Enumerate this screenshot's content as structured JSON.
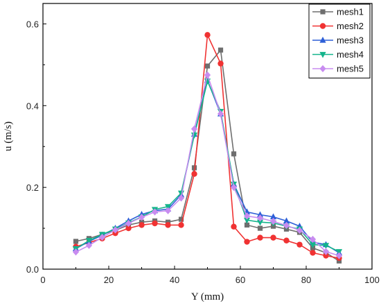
{
  "chart_data": {
    "type": "line",
    "xlabel": "Y (mm)",
    "ylabel": "u (m/s)",
    "xlim": [
      0,
      100
    ],
    "ylim": [
      0,
      0.65
    ],
    "xticks": [
      0,
      20,
      40,
      60,
      80,
      100
    ],
    "yticks": [
      0.0,
      0.2,
      0.4,
      0.6
    ],
    "ytick_labels": [
      "0.0",
      "0.2",
      "0.4",
      "0.6"
    ],
    "grid": false,
    "legend_position": "top-right",
    "series": [
      {
        "name": "mesh1",
        "color": "#6e6e6e",
        "marker": "square",
        "x": [
          10,
          14,
          18,
          22,
          26,
          30,
          34,
          38,
          42,
          46,
          50,
          54,
          58,
          62,
          66,
          70,
          74,
          78,
          82,
          86,
          90
        ],
        "y": [
          0.068,
          0.075,
          0.085,
          0.095,
          0.108,
          0.115,
          0.118,
          0.115,
          0.122,
          0.248,
          0.497,
          0.536,
          0.282,
          0.108,
          0.1,
          0.105,
          0.098,
          0.09,
          0.052,
          0.04,
          0.02
        ]
      },
      {
        "name": "mesh2",
        "color": "#f03232",
        "marker": "circle",
        "x": [
          10,
          14,
          18,
          22,
          26,
          30,
          34,
          38,
          42,
          46,
          50,
          54,
          58,
          62,
          66,
          70,
          74,
          78,
          82,
          86,
          90
        ],
        "y": [
          0.055,
          0.065,
          0.075,
          0.088,
          0.1,
          0.108,
          0.112,
          0.108,
          0.108,
          0.233,
          0.573,
          0.503,
          0.104,
          0.067,
          0.077,
          0.077,
          0.07,
          0.06,
          0.04,
          0.033,
          0.027
        ]
      },
      {
        "name": "mesh3",
        "color": "#2d5fd7",
        "marker": "triangle-up",
        "x": [
          10,
          14,
          18,
          22,
          26,
          30,
          34,
          38,
          42,
          46,
          50,
          54,
          58,
          62,
          66,
          70,
          74,
          78,
          82,
          86,
          90
        ],
        "y": [
          0.05,
          0.068,
          0.083,
          0.1,
          0.118,
          0.134,
          0.143,
          0.147,
          0.182,
          0.33,
          0.462,
          0.38,
          0.208,
          0.14,
          0.133,
          0.128,
          0.118,
          0.105,
          0.066,
          0.06,
          0.04
        ]
      },
      {
        "name": "mesh4",
        "color": "#14b48c",
        "marker": "triangle-down",
        "x": [
          10,
          14,
          18,
          22,
          26,
          30,
          34,
          38,
          42,
          46,
          50,
          54,
          58,
          62,
          66,
          70,
          74,
          78,
          82,
          86,
          90
        ],
        "y": [
          0.05,
          0.07,
          0.085,
          0.098,
          0.113,
          0.128,
          0.146,
          0.153,
          0.186,
          0.328,
          0.46,
          0.386,
          0.208,
          0.12,
          0.115,
          0.113,
          0.105,
          0.098,
          0.06,
          0.058,
          0.043
        ]
      },
      {
        "name": "mesh5",
        "color": "#c88cf0",
        "marker": "diamond",
        "x": [
          10,
          14,
          18,
          22,
          26,
          30,
          34,
          38,
          42,
          46,
          50,
          54,
          58,
          62,
          66,
          70,
          74,
          78,
          82,
          86,
          90
        ],
        "y": [
          0.042,
          0.058,
          0.078,
          0.096,
          0.112,
          0.127,
          0.14,
          0.143,
          0.174,
          0.343,
          0.475,
          0.38,
          0.2,
          0.13,
          0.125,
          0.117,
          0.107,
          0.095,
          0.073,
          0.043,
          0.033
        ]
      }
    ]
  }
}
